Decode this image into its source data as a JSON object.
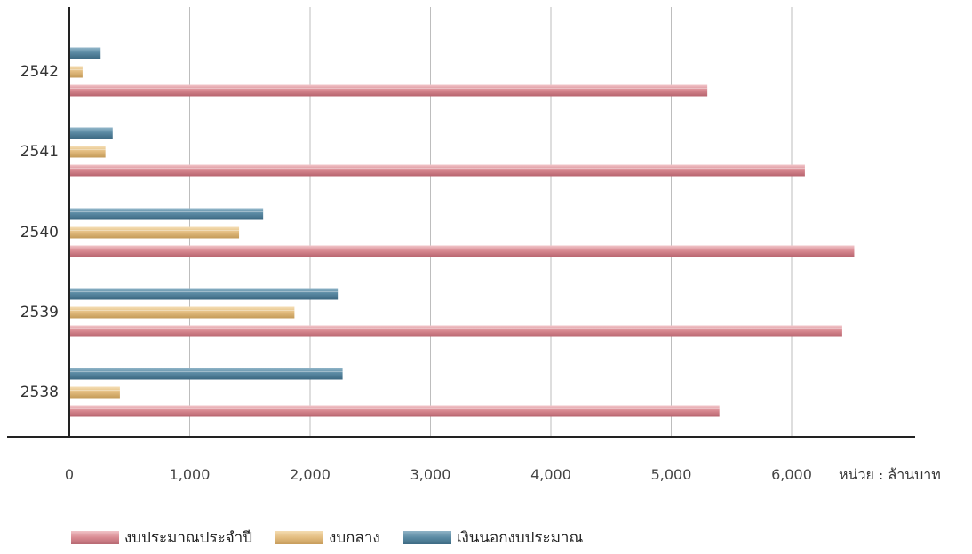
{
  "chart_data": {
    "type": "bar",
    "orientation": "horizontal",
    "categories": [
      "2542",
      "2541",
      "2540",
      "2539",
      "2538"
    ],
    "series": [
      {
        "name": "งบประมาณประจำปี",
        "values": [
          5300,
          6110,
          6520,
          6420,
          5400
        ],
        "color": "#d98a92"
      },
      {
        "name": "งบกลาง",
        "values": [
          110,
          300,
          1410,
          1870,
          420
        ],
        "color": "#e3bd80"
      },
      {
        "name": "เงินนอกงบประมาณ",
        "values": [
          260,
          360,
          1610,
          2230,
          2270
        ],
        "color": "#5b8aa3"
      }
    ],
    "xticks": [
      "0",
      "1,000",
      "2,000",
      "3,000",
      "4,000",
      "5,000",
      "6,000"
    ],
    "xlim": [
      0,
      7000
    ],
    "unit_label": "หน่วย : ล้านบาท",
    "grid": true,
    "legend_position": "bottom"
  }
}
